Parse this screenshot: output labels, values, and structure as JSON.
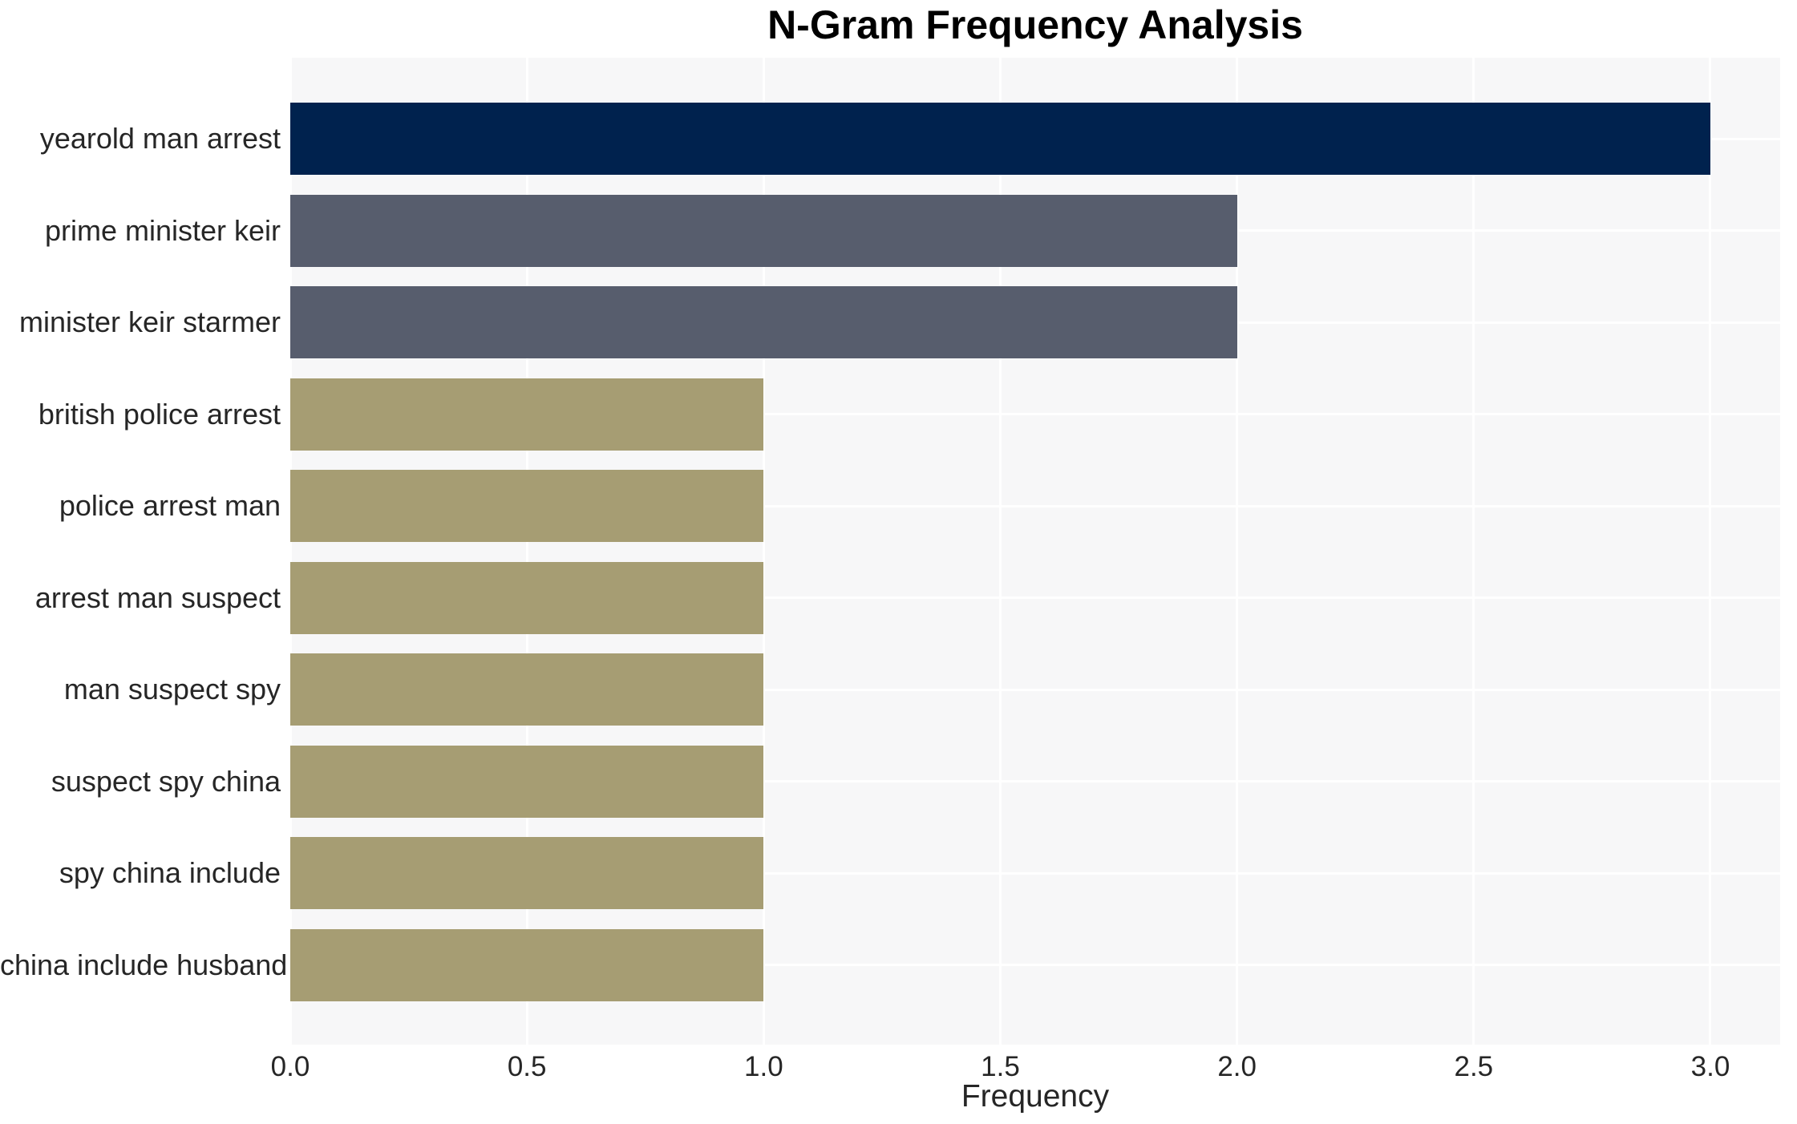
{
  "chart_data": {
    "type": "bar",
    "orientation": "horizontal",
    "title": "N-Gram Frequency Analysis",
    "xlabel": "Frequency",
    "ylabel": "",
    "categories": [
      "yearold man arrest",
      "prime minister keir",
      "minister keir starmer",
      "british police arrest",
      "police arrest man",
      "arrest man suspect",
      "man suspect spy",
      "suspect spy china",
      "spy china include",
      "china include husband"
    ],
    "values": [
      3,
      2,
      2,
      1,
      1,
      1,
      1,
      1,
      1,
      1
    ],
    "bar_colors": [
      "#00224e",
      "#575d6d",
      "#575d6d",
      "#a69d73",
      "#a69d73",
      "#a69d73",
      "#a69d73",
      "#a69d73",
      "#a69d73",
      "#a69d73"
    ],
    "xticks": [
      0,
      0.5,
      1,
      1.5,
      2,
      2.5,
      3
    ],
    "xtick_labels": [
      "0.0",
      "0.5",
      "1.0",
      "1.5",
      "2.0",
      "2.5",
      "3.0"
    ],
    "xlim": [
      0,
      3.15
    ],
    "grid": true,
    "legend": "none",
    "colors": {
      "plot_background": "#f7f7f8",
      "grid": "#ffffff",
      "frequency_3": "#00224e",
      "frequency_2": "#575d6d",
      "frequency_1": "#a69d73",
      "label_text": "#262626",
      "title_text": "#000000"
    }
  }
}
